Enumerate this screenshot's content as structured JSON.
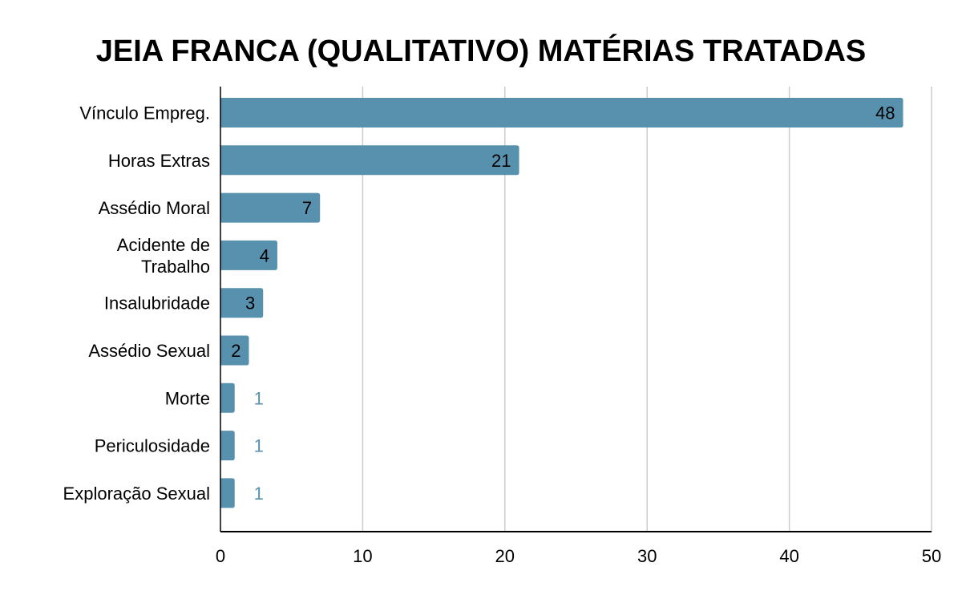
{
  "chart_data": {
    "type": "bar",
    "orientation": "horizontal",
    "title": "JEIA FRANCA (QUALITATIVO) MATÉRIAS TRATADAS",
    "categories": [
      [
        "Vínculo Empreg."
      ],
      [
        "Horas Extras"
      ],
      [
        "Assédio Moral"
      ],
      [
        "Acidente de",
        "Trabalho"
      ],
      [
        "Insalubridade"
      ],
      [
        "Assédio Sexual"
      ],
      [
        "Morte"
      ],
      [
        "Periculosidade"
      ],
      [
        "Exploração Sexual"
      ]
    ],
    "values": [
      48,
      21,
      7,
      4,
      3,
      2,
      1,
      1,
      1
    ],
    "xlim": [
      0,
      50
    ],
    "xticks": [
      "0",
      "10",
      "20",
      "30",
      "40",
      "50"
    ],
    "grid": true,
    "legend": "none",
    "colors": {
      "bar": "#5891ad",
      "grid": "#cccccc",
      "axis": "#000000",
      "label_outside": "#5891ad",
      "label_inside": "#000000"
    }
  }
}
